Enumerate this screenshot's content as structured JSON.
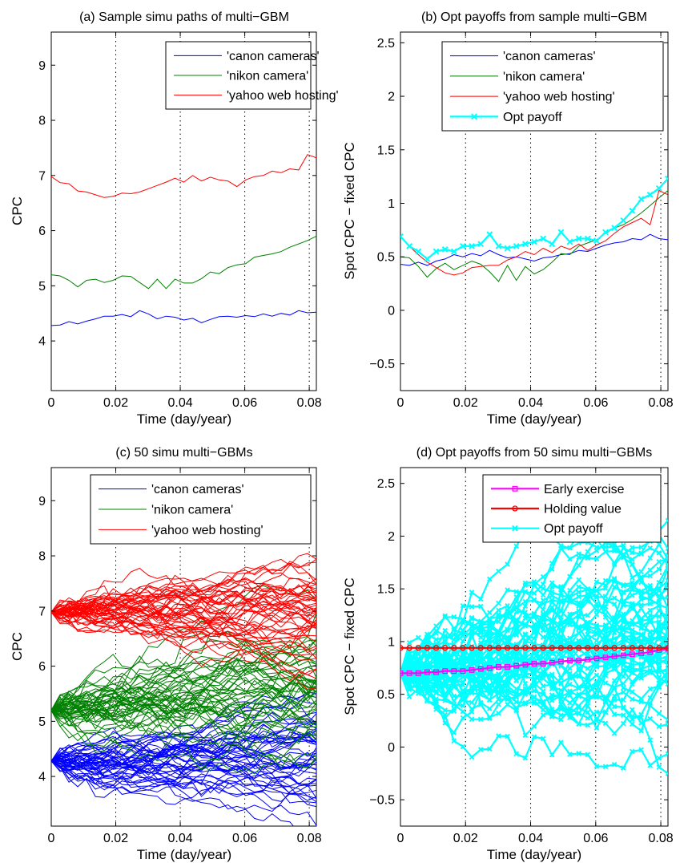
{
  "chart_data": [
    {
      "id": "a",
      "type": "line",
      "title": "(a) Sample simu paths of multi−GBM",
      "xlabel": "Time (day/year)",
      "ylabel": "CPC",
      "xlim": [
        0,
        0.0822
      ],
      "ylim": [
        3.1,
        9.6
      ],
      "xticks": [
        0,
        0.02,
        0.04,
        0.06,
        0.08
      ],
      "xtick_labels": [
        "0",
        "0.02",
        "0.04",
        "0.06",
        "0.08"
      ],
      "yticks": [
        4,
        5,
        6,
        7,
        8,
        9
      ],
      "ytick_labels": [
        "4",
        "5",
        "6",
        "7",
        "8",
        "9"
      ],
      "grid": "x-dotted",
      "legend_position": "top-right",
      "series": [
        {
          "name": "'canon cameras'",
          "color": "#0000ff",
          "x": [
            0,
            0.00274,
            0.00548,
            0.00822,
            0.01096,
            0.0137,
            0.01644,
            0.01918,
            0.02192,
            0.02466,
            0.0274,
            0.03014,
            0.03288,
            0.03562,
            0.03836,
            0.0411,
            0.04384,
            0.04658,
            0.04932,
            0.05206,
            0.0548,
            0.05754,
            0.06027,
            0.06301,
            0.06575,
            0.06849,
            0.07123,
            0.07397,
            0.07671,
            0.07945,
            0.08219
          ],
          "y": [
            4.28,
            4.29,
            4.35,
            4.31,
            4.36,
            4.4,
            4.45,
            4.45,
            4.48,
            4.44,
            4.55,
            4.49,
            4.4,
            4.45,
            4.43,
            4.38,
            4.41,
            4.33,
            4.39,
            4.44,
            4.45,
            4.43,
            4.46,
            4.44,
            4.49,
            4.45,
            4.5,
            4.47,
            4.55,
            4.51,
            4.52
          ]
        },
        {
          "name": "'nikon camera'",
          "color": "#008000",
          "x": [
            0,
            0.00274,
            0.00548,
            0.00822,
            0.01096,
            0.0137,
            0.01644,
            0.01918,
            0.02192,
            0.02466,
            0.0274,
            0.03014,
            0.03288,
            0.03562,
            0.03836,
            0.0411,
            0.04384,
            0.04658,
            0.04932,
            0.05206,
            0.0548,
            0.05754,
            0.06027,
            0.06301,
            0.06575,
            0.06849,
            0.07123,
            0.07397,
            0.07671,
            0.07945,
            0.08219
          ],
          "y": [
            5.2,
            5.18,
            5.1,
            4.98,
            5.1,
            5.12,
            5.06,
            5.1,
            5.18,
            5.17,
            5.06,
            4.95,
            5.12,
            4.95,
            5.12,
            5.05,
            5.05,
            5.13,
            5.25,
            5.22,
            5.33,
            5.38,
            5.4,
            5.52,
            5.55,
            5.58,
            5.62,
            5.7,
            5.76,
            5.82,
            5.9
          ]
        },
        {
          "name": "'yahoo web hosting'",
          "color": "#ff0000",
          "x": [
            0,
            0.00274,
            0.00548,
            0.00822,
            0.01096,
            0.0137,
            0.01644,
            0.01918,
            0.02192,
            0.02466,
            0.0274,
            0.03014,
            0.03288,
            0.03562,
            0.03836,
            0.0411,
            0.04384,
            0.04658,
            0.04932,
            0.05206,
            0.0548,
            0.05754,
            0.06027,
            0.06301,
            0.06575,
            0.06849,
            0.07123,
            0.07397,
            0.07671,
            0.07945,
            0.08219
          ],
          "y": [
            6.98,
            6.87,
            6.85,
            6.72,
            6.7,
            6.65,
            6.6,
            6.62,
            6.68,
            6.67,
            6.7,
            6.76,
            6.82,
            6.88,
            6.95,
            6.88,
            7.0,
            6.9,
            6.97,
            6.92,
            6.9,
            6.8,
            6.92,
            6.98,
            7.0,
            7.08,
            7.05,
            7.12,
            7.1,
            7.38,
            7.32
          ]
        }
      ]
    },
    {
      "id": "b",
      "type": "line",
      "title": "(b) Opt payoffs from sample multi−GBM",
      "xlabel": "Time (day/year)",
      "ylabel": "Spot CPC − fixed CPC",
      "xlim": [
        0,
        0.0822
      ],
      "ylim": [
        -0.75,
        2.6
      ],
      "xticks": [
        0,
        0.02,
        0.04,
        0.06,
        0.08
      ],
      "xtick_labels": [
        "0",
        "0.02",
        "0.04",
        "0.06",
        "0.08"
      ],
      "yticks": [
        -0.5,
        0,
        0.5,
        1,
        1.5,
        2,
        2.5
      ],
      "ytick_labels": [
        "−0.5",
        "0",
        "0.5",
        "1",
        "1.5",
        "2",
        "2.5"
      ],
      "grid": "x-dotted",
      "legend_position": "top-right",
      "series": [
        {
          "name": "'canon cameras'",
          "color": "#0000ff",
          "x": [
            0,
            0.00274,
            0.00548,
            0.00822,
            0.01096,
            0.0137,
            0.01644,
            0.01918,
            0.02192,
            0.02466,
            0.0274,
            0.03014,
            0.03288,
            0.03562,
            0.03836,
            0.0411,
            0.04384,
            0.04658,
            0.04932,
            0.05206,
            0.0548,
            0.05754,
            0.06027,
            0.06301,
            0.06575,
            0.06849,
            0.07123,
            0.07397,
            0.07671,
            0.07945,
            0.08219
          ],
          "y": [
            0.43,
            0.42,
            0.45,
            0.42,
            0.46,
            0.48,
            0.52,
            0.5,
            0.53,
            0.51,
            0.56,
            0.52,
            0.49,
            0.5,
            0.48,
            0.46,
            0.49,
            0.5,
            0.52,
            0.53,
            0.56,
            0.55,
            0.58,
            0.61,
            0.63,
            0.64,
            0.67,
            0.66,
            0.71,
            0.67,
            0.66
          ]
        },
        {
          "name": "'nikon camera'",
          "color": "#008000",
          "x": [
            0,
            0.00274,
            0.00548,
            0.00822,
            0.01096,
            0.0137,
            0.01644,
            0.01918,
            0.02192,
            0.02466,
            0.0274,
            0.03014,
            0.03288,
            0.03562,
            0.03836,
            0.0411,
            0.04384,
            0.04658,
            0.04932,
            0.05206,
            0.0548,
            0.05754,
            0.06027,
            0.06301,
            0.06575,
            0.06849,
            0.07123,
            0.07397,
            0.07671,
            0.07945,
            0.08219
          ],
          "y": [
            0.5,
            0.49,
            0.41,
            0.31,
            0.39,
            0.44,
            0.38,
            0.42,
            0.46,
            0.43,
            0.36,
            0.27,
            0.42,
            0.28,
            0.41,
            0.34,
            0.38,
            0.45,
            0.53,
            0.52,
            0.6,
            0.63,
            0.66,
            0.72,
            0.77,
            0.8,
            0.85,
            0.91,
            0.98,
            1.05,
            1.12
          ]
        },
        {
          "name": "'yahoo web hosting'",
          "color": "#ff0000",
          "x": [
            0,
            0.00274,
            0.00548,
            0.00822,
            0.01096,
            0.0137,
            0.01644,
            0.01918,
            0.02192,
            0.02466,
            0.0274,
            0.03014,
            0.03288,
            0.03562,
            0.03836,
            0.0411,
            0.04384,
            0.04658,
            0.04932,
            0.05206,
            0.0548,
            0.05754,
            0.06027,
            0.06301,
            0.06575,
            0.06849,
            0.07123,
            0.07397,
            0.07671,
            0.07945,
            0.08219
          ],
          "y": [
            0.69,
            0.6,
            0.52,
            0.45,
            0.4,
            0.35,
            0.33,
            0.35,
            0.4,
            0.41,
            0.42,
            0.42,
            0.47,
            0.5,
            0.55,
            0.52,
            0.58,
            0.54,
            0.6,
            0.57,
            0.62,
            0.56,
            0.61,
            0.65,
            0.72,
            0.78,
            0.82,
            0.86,
            0.8,
            1.12,
            1.08
          ]
        },
        {
          "name": "Opt payoff",
          "color": "#00ffff",
          "marker": "x",
          "x": [
            0,
            0.00274,
            0.00548,
            0.00822,
            0.01096,
            0.0137,
            0.01644,
            0.01918,
            0.02192,
            0.02466,
            0.0274,
            0.03014,
            0.03288,
            0.03562,
            0.03836,
            0.0411,
            0.04384,
            0.04658,
            0.04932,
            0.05206,
            0.0548,
            0.05754,
            0.06027,
            0.06301,
            0.06575,
            0.06849,
            0.07123,
            0.07397,
            0.07671,
            0.07945,
            0.08219
          ],
          "y": [
            0.69,
            0.6,
            0.55,
            0.48,
            0.55,
            0.57,
            0.55,
            0.6,
            0.6,
            0.62,
            0.71,
            0.6,
            0.58,
            0.6,
            0.62,
            0.64,
            0.67,
            0.62,
            0.73,
            0.64,
            0.67,
            0.67,
            0.65,
            0.73,
            0.77,
            0.84,
            0.93,
            1.04,
            1.08,
            1.14,
            1.23
          ]
        }
      ]
    },
    {
      "id": "c",
      "type": "line",
      "title": "(c) 50 simu multi−GBMs",
      "xlabel": "Time (day/year)",
      "ylabel": "CPC",
      "xlim": [
        0,
        0.0822
      ],
      "ylim": [
        3.1,
        9.6
      ],
      "xticks": [
        0,
        0.02,
        0.04,
        0.06,
        0.08
      ],
      "xtick_labels": [
        "0",
        "0.02",
        "0.04",
        "0.06",
        "0.08"
      ],
      "yticks": [
        4,
        5,
        6,
        7,
        8,
        9
      ],
      "ytick_labels": [
        "4",
        "5",
        "6",
        "7",
        "8",
        "9"
      ],
      "grid": "x-dotted",
      "legend_position": "top-right",
      "paths_per_series": 50,
      "series": [
        {
          "name": "'canon cameras'",
          "color": "#0000ff",
          "start": 4.28,
          "spread_end": [
            3.55,
            4.95
          ]
        },
        {
          "name": "'nikon camera'",
          "color": "#008000",
          "start": 5.2,
          "spread_end": [
            4.6,
            6.55
          ]
        },
        {
          "name": "'yahoo web hosting'",
          "color": "#ff0000",
          "start": 6.98,
          "spread_end": [
            6.2,
            7.7
          ]
        }
      ]
    },
    {
      "id": "d",
      "type": "line",
      "title": "(d) Opt payoffs from 50 simu multi−GBMs",
      "xlabel": "Time (day/year)",
      "ylabel": "Spot CPC − fixed CPC",
      "xlim": [
        0,
        0.0822
      ],
      "ylim": [
        -0.75,
        2.65
      ],
      "xticks": [
        0,
        0.02,
        0.04,
        0.06,
        0.08
      ],
      "xtick_labels": [
        "0",
        "0.02",
        "0.04",
        "0.06",
        "0.08"
      ],
      "yticks": [
        -0.5,
        0,
        0.5,
        1,
        1.5,
        2,
        2.5
      ],
      "ytick_labels": [
        "−0.5",
        "0",
        "0.5",
        "1",
        "1.5",
        "2",
        "2.5"
      ],
      "grid": "x-dotted",
      "legend_position": "top-right",
      "series": [
        {
          "name": "Early exercise",
          "color": "#ff00ff",
          "marker": "square",
          "x": [
            0,
            0.00274,
            0.00548,
            0.00822,
            0.01096,
            0.0137,
            0.01644,
            0.01918,
            0.02192,
            0.02466,
            0.0274,
            0.03014,
            0.03288,
            0.03562,
            0.03836,
            0.0411,
            0.04384,
            0.04658,
            0.04932,
            0.05206,
            0.0548,
            0.05754,
            0.06027,
            0.06301,
            0.06575,
            0.06849,
            0.07123,
            0.07397,
            0.07671,
            0.07945,
            0.08219
          ],
          "y": [
            0.7,
            0.7,
            0.7,
            0.71,
            0.71,
            0.72,
            0.72,
            0.72,
            0.73,
            0.74,
            0.75,
            0.76,
            0.76,
            0.77,
            0.78,
            0.79,
            0.79,
            0.8,
            0.81,
            0.82,
            0.82,
            0.83,
            0.84,
            0.85,
            0.86,
            0.87,
            0.88,
            0.89,
            0.9,
            0.92,
            0.93
          ]
        },
        {
          "name": "Holding value",
          "color": "#ff0000",
          "marker": "circle",
          "x": [
            0,
            0.00274,
            0.00548,
            0.00822,
            0.01096,
            0.0137,
            0.01644,
            0.01918,
            0.02192,
            0.02466,
            0.0274,
            0.03014,
            0.03288,
            0.03562,
            0.03836,
            0.0411,
            0.04384,
            0.04658,
            0.04932,
            0.05206,
            0.0548,
            0.05754,
            0.06027,
            0.06301,
            0.06575,
            0.06849,
            0.07123,
            0.07397,
            0.07671,
            0.07945,
            0.08219
          ],
          "y": [
            0.94,
            0.94,
            0.94,
            0.94,
            0.94,
            0.94,
            0.94,
            0.94,
            0.94,
            0.94,
            0.94,
            0.94,
            0.94,
            0.94,
            0.94,
            0.94,
            0.94,
            0.94,
            0.94,
            0.94,
            0.94,
            0.94,
            0.94,
            0.94,
            0.94,
            0.94,
            0.94,
            0.94,
            0.94,
            0.94,
            0.94
          ]
        },
        {
          "name": "Opt payoff",
          "color": "#00ffff",
          "marker": "x",
          "paths": 50,
          "start": 0.7,
          "spread_end": [
            0.3,
            1.85
          ]
        }
      ]
    }
  ]
}
